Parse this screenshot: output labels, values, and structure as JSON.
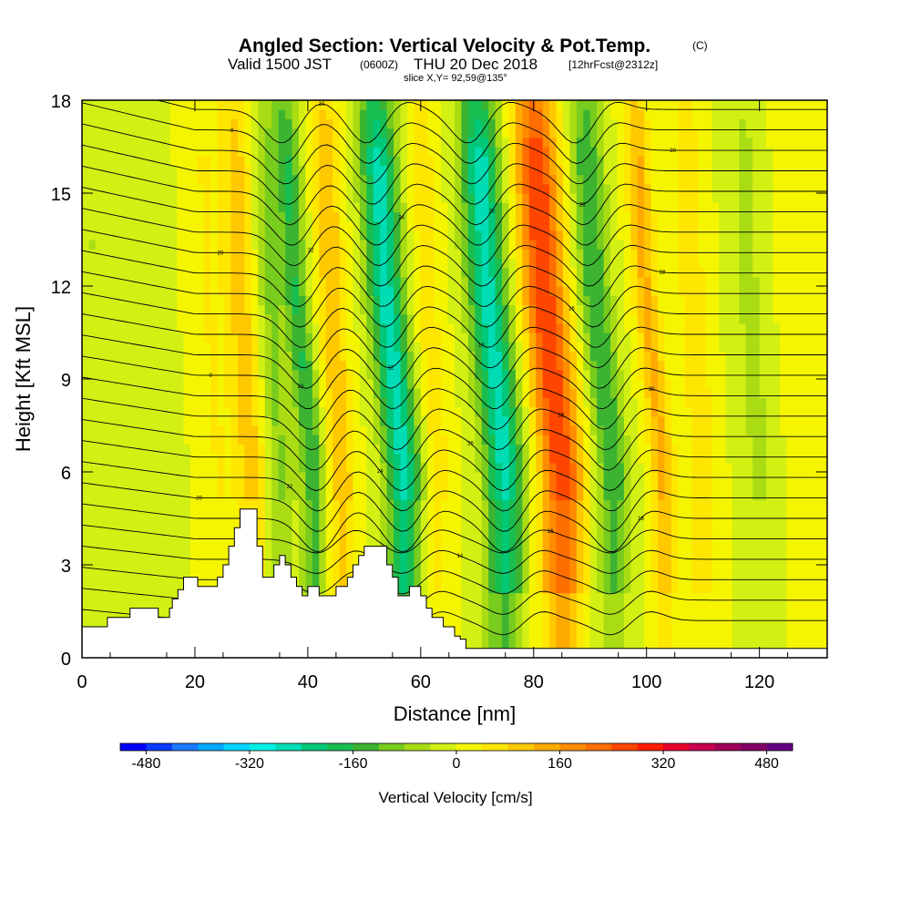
{
  "chart_data": {
    "type": "heatmap",
    "title": {
      "main": "Angled Section: Vertical Velocity & Pot.Temp.",
      "unit_tag": "(C)",
      "valid_prefix": "Valid 1500 JST",
      "valid_utc": "(0600Z)",
      "valid_date": "THU 20 Dec 2018",
      "forecast_tag": "[12hrFcst@2312z]",
      "slice": "slice X,Y= 92,59@135°"
    },
    "xlabel": "Distance [nm]",
    "ylabel": "Height [Kft MSL]",
    "xlim": [
      0,
      132
    ],
    "ylim": [
      0,
      18
    ],
    "x_ticks": [
      0,
      20,
      40,
      60,
      80,
      100,
      120
    ],
    "y_ticks": [
      0,
      3,
      6,
      9,
      12,
      15,
      18
    ],
    "velocity_bands": [
      {
        "x": 4,
        "w": 2.5,
        "v": -40
      },
      {
        "x": 13,
        "w": 3,
        "v": -30
      },
      {
        "x": 24,
        "w": 2.5,
        "v": 40
      },
      {
        "x": 30,
        "w": 3,
        "v": 100
      },
      {
        "x": 35,
        "w": 2.5,
        "v": -90
      },
      {
        "x": 41,
        "w": 2.2,
        "v": -160
      },
      {
        "x": 46,
        "w": 2.5,
        "v": 110
      },
      {
        "x": 57,
        "w": 3.2,
        "v": -260
      },
      {
        "x": 63,
        "w": 2.5,
        "v": 60
      },
      {
        "x": 75,
        "w": 3.5,
        "v": -260
      },
      {
        "x": 85,
        "w": 3.8,
        "v": 280
      },
      {
        "x": 94,
        "w": 2.8,
        "v": -160
      },
      {
        "x": 103,
        "w": 2.2,
        "v": 130
      },
      {
        "x": 110,
        "w": 2.5,
        "v": 70
      },
      {
        "x": 120,
        "w": 3,
        "v": -50
      },
      {
        "x": 128,
        "w": 2.5,
        "v": 30
      }
    ],
    "terrain": [
      [
        0,
        1.0
      ],
      [
        4,
        1.0
      ],
      [
        4.5,
        1.3
      ],
      [
        8,
        1.3
      ],
      [
        8.5,
        1.6
      ],
      [
        13,
        1.6
      ],
      [
        13.5,
        1.3
      ],
      [
        15,
        1.3
      ],
      [
        15.5,
        1.6
      ],
      [
        16,
        1.9
      ],
      [
        17,
        2.2
      ],
      [
        18,
        2.6
      ],
      [
        20,
        2.6
      ],
      [
        20.5,
        2.3
      ],
      [
        23,
        2.3
      ],
      [
        24,
        2.6
      ],
      [
        25,
        3.0
      ],
      [
        26,
        3.6
      ],
      [
        27,
        4.2
      ],
      [
        28,
        4.8
      ],
      [
        30.5,
        4.8
      ],
      [
        31,
        3.6
      ],
      [
        32,
        2.6
      ],
      [
        33,
        2.6
      ],
      [
        34,
        3.0
      ],
      [
        35,
        3.3
      ],
      [
        36,
        3.0
      ],
      [
        37,
        2.6
      ],
      [
        38,
        2.3
      ],
      [
        39,
        2.0
      ],
      [
        40,
        2.3
      ],
      [
        42,
        2.0
      ],
      [
        44,
        2.0
      ],
      [
        45,
        2.3
      ],
      [
        46,
        2.3
      ],
      [
        47,
        2.6
      ],
      [
        48,
        3.0
      ],
      [
        49,
        3.3
      ],
      [
        50,
        3.6
      ],
      [
        53,
        3.6
      ],
      [
        54,
        3.0
      ],
      [
        55,
        2.6
      ],
      [
        56,
        2.0
      ],
      [
        57,
        2.0
      ],
      [
        58,
        2.3
      ],
      [
        60,
        2.0
      ],
      [
        61,
        1.6
      ],
      [
        62,
        1.3
      ],
      [
        63,
        1.3
      ],
      [
        64,
        1.0
      ],
      [
        66,
        0.7
      ],
      [
        67,
        0.6
      ],
      [
        68,
        0.3
      ],
      [
        132,
        0.3
      ]
    ],
    "theta_levels": 26,
    "theta_wave_axes": [
      42,
      57,
      75,
      94
    ],
    "contour_labels": [
      "-0",
      "10",
      "12",
      "14",
      "16",
      "18",
      "20",
      "22",
      "24",
      "26",
      "28",
      "30"
    ],
    "colorbar": {
      "title": "Vertical Velocity [cm/s]",
      "ticks": [
        -480,
        -320,
        -160,
        0,
        160,
        320,
        480
      ],
      "min": -520,
      "max": 520,
      "colors": [
        "#0000ff",
        "#0a3cff",
        "#1a78ff",
        "#00a8ff",
        "#00d2ff",
        "#00f0e6",
        "#00dcb4",
        "#00c878",
        "#19be50",
        "#3cb432",
        "#78cc1e",
        "#aadc14",
        "#d2f014",
        "#f5f500",
        "#ffe600",
        "#ffc800",
        "#ffaa00",
        "#ff8c00",
        "#ff6e00",
        "#ff4600",
        "#ff1e00",
        "#e6002d",
        "#c80050",
        "#a0005a",
        "#820064",
        "#640082"
      ]
    }
  }
}
